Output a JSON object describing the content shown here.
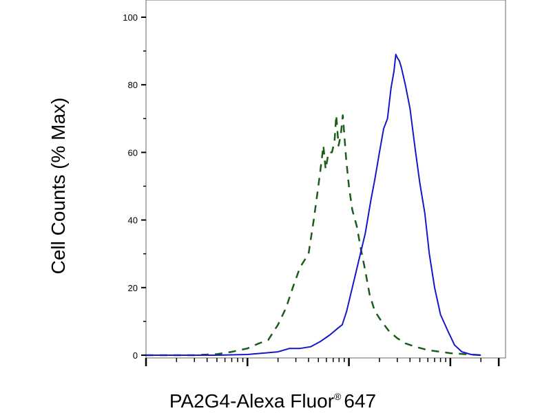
{
  "chart_data": {
    "type": "line",
    "title": "",
    "xlabel": "PA2G4-Alexa Fluor",
    "xlabel_mark": "®",
    "xlabel_tail": "647",
    "ylabel": "Cell Counts (% Max)",
    "x_scale": "log",
    "xlim": [
      10,
      35000
    ],
    "ylim": [
      0,
      105
    ],
    "y_ticks": [
      0,
      20,
      40,
      60,
      80,
      100
    ],
    "y_tick_labels": [
      "0",
      "20",
      "40",
      "60",
      "80",
      "100"
    ],
    "x_major_ticks": [
      10,
      100,
      1000,
      10000
    ],
    "grid": false,
    "legend": "none",
    "series": [
      {
        "style": "dashed",
        "color": "#1a5c1a",
        "points": [
          [
            10,
            0
          ],
          [
            30,
            0
          ],
          [
            50,
            0.3
          ],
          [
            70,
            1
          ],
          [
            100,
            2
          ],
          [
            130,
            3.5
          ],
          [
            160,
            4.5
          ],
          [
            200,
            9
          ],
          [
            240,
            14
          ],
          [
            280,
            20
          ],
          [
            330,
            26
          ],
          [
            400,
            30
          ],
          [
            450,
            40
          ],
          [
            500,
            50
          ],
          [
            540,
            58
          ],
          [
            560,
            62
          ],
          [
            590,
            55
          ],
          [
            630,
            60
          ],
          [
            680,
            60
          ],
          [
            720,
            63
          ],
          [
            750,
            71
          ],
          [
            790,
            62
          ],
          [
            830,
            65
          ],
          [
            870,
            71
          ],
          [
            940,
            58
          ],
          [
            1000,
            50
          ],
          [
            1080,
            43
          ],
          [
            1200,
            38
          ],
          [
            1300,
            32
          ],
          [
            1450,
            25
          ],
          [
            1600,
            18
          ],
          [
            1800,
            13
          ],
          [
            2100,
            10
          ],
          [
            2500,
            7
          ],
          [
            3000,
            5
          ],
          [
            3600,
            3.5
          ],
          [
            4500,
            2.5
          ],
          [
            6000,
            1.5
          ],
          [
            8000,
            1
          ],
          [
            10000,
            0.6
          ],
          [
            14000,
            0.3
          ],
          [
            20000,
            0
          ]
        ]
      },
      {
        "style": "solid",
        "color": "#1515cc",
        "points": [
          [
            10,
            0
          ],
          [
            50,
            0
          ],
          [
            100,
            0.2
          ],
          [
            200,
            1
          ],
          [
            260,
            2
          ],
          [
            330,
            2
          ],
          [
            420,
            2.5
          ],
          [
            520,
            4
          ],
          [
            650,
            6
          ],
          [
            780,
            8
          ],
          [
            860,
            9
          ],
          [
            950,
            13
          ],
          [
            1080,
            20
          ],
          [
            1250,
            28
          ],
          [
            1450,
            36
          ],
          [
            1650,
            46
          ],
          [
            1800,
            52
          ],
          [
            2000,
            60
          ],
          [
            2200,
            67
          ],
          [
            2400,
            70
          ],
          [
            2600,
            79
          ],
          [
            2780,
            84
          ],
          [
            2900,
            89
          ],
          [
            3000,
            88
          ],
          [
            3150,
            87
          ],
          [
            3300,
            85
          ],
          [
            3600,
            80
          ],
          [
            4000,
            73
          ],
          [
            4500,
            61
          ],
          [
            5000,
            51
          ],
          [
            5600,
            42
          ],
          [
            6200,
            30
          ],
          [
            7000,
            20
          ],
          [
            8000,
            12
          ],
          [
            9500,
            7
          ],
          [
            11000,
            3
          ],
          [
            13000,
            1
          ],
          [
            16000,
            0.2
          ],
          [
            20000,
            0
          ]
        ]
      }
    ]
  }
}
